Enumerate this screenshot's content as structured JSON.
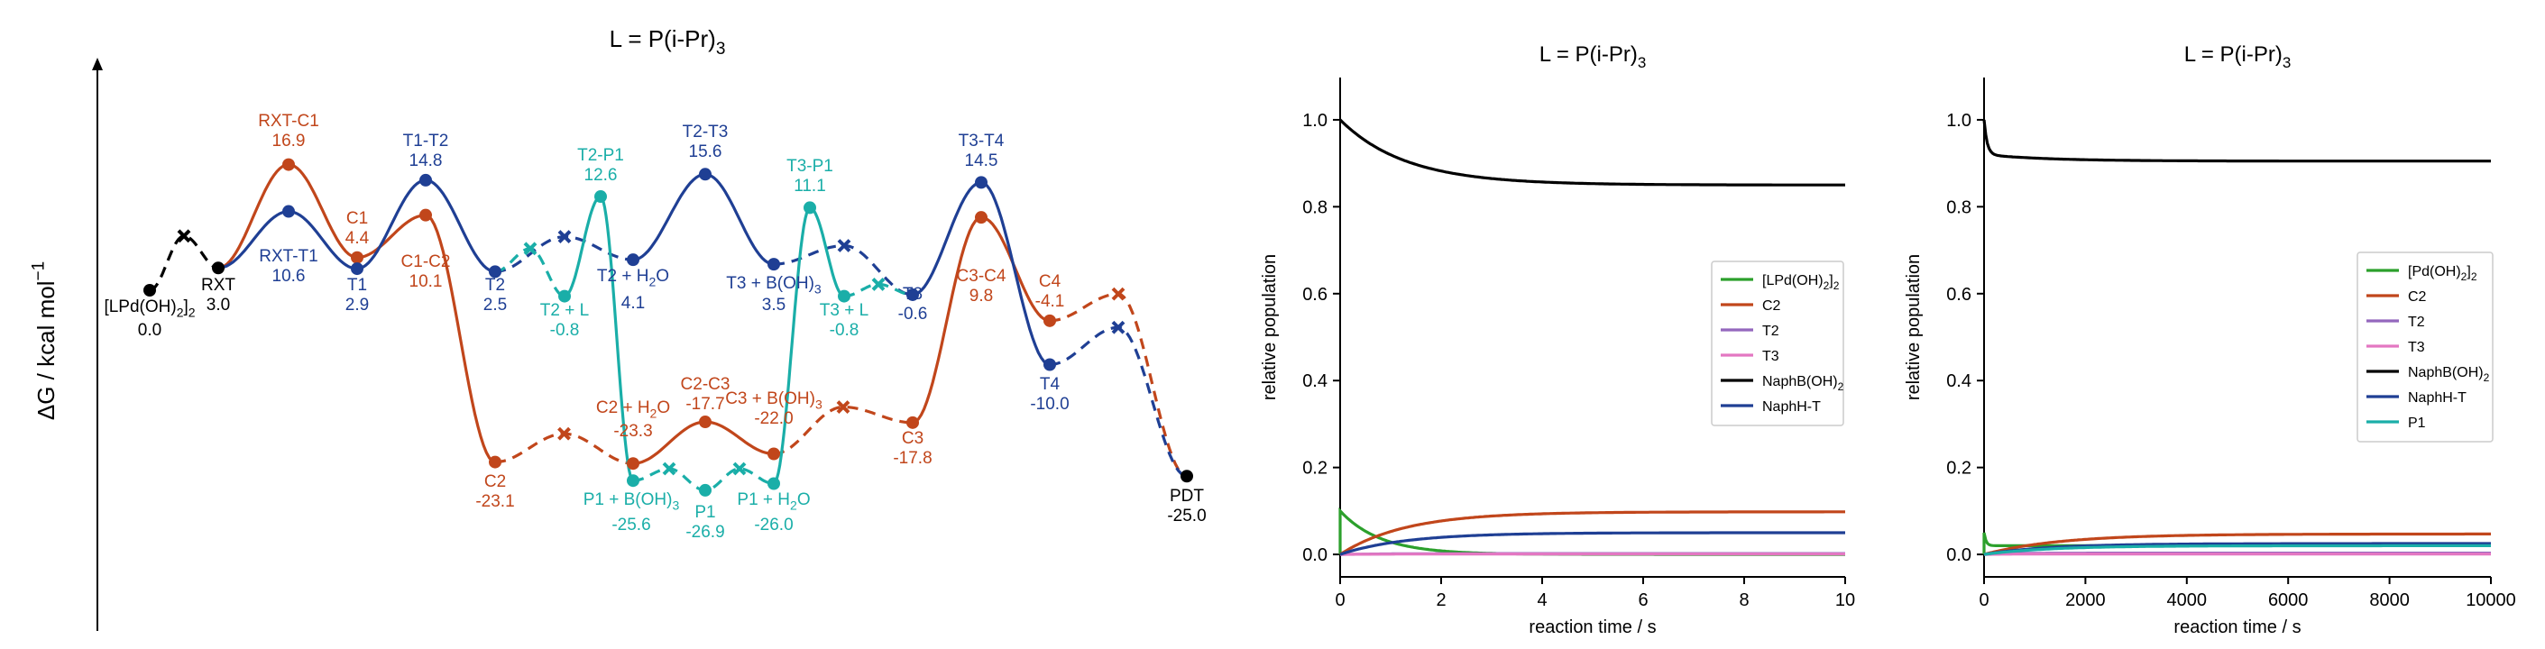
{
  "colors": {
    "black": "#000000",
    "blue": "#1f3f94",
    "orange": "#c1461b",
    "teal": "#1aaea8",
    "green": "#2ca02c",
    "purple": "#9467bd",
    "pink": "#e377c2"
  },
  "chart_data": [
    {
      "type": "line",
      "title": "L = P(i-Pr)3",
      "title_parts": {
        "main": "L = P(i-Pr)",
        "sub": "3"
      },
      "ylabel": "ΔG / kcal mol⁻¹",
      "ylabel_parts": {
        "main": "ΔG / kcal mol",
        "sup": "−1"
      },
      "series": [
        {
          "color": "black",
          "values": [
            0.0,
            3.0,
            -25.0
          ]
        },
        {
          "color": "blue",
          "values": [
            3.0,
            10.6,
            2.9,
            14.8,
            2.5,
            4.1,
            15.6,
            3.5,
            -0.6,
            14.5,
            -10.0
          ]
        },
        {
          "color": "orange",
          "values": [
            3.0,
            16.9,
            4.4,
            10.1,
            -23.1,
            -23.3,
            -17.7,
            -22.0,
            -17.8,
            9.8,
            -4.1
          ]
        },
        {
          "color": "teal",
          "values": [
            2.5,
            -0.8,
            12.6,
            -25.6,
            -26.9,
            -26.0,
            11.1,
            -0.8,
            -0.6
          ]
        }
      ],
      "states": [
        {
          "id": "lpd",
          "name": "[LPd(OH)2]2",
          "parts": {
            "main": "[LPd(OH)",
            "sub": "2",
            "tail": "]",
            "sub2": "2"
          },
          "value": "0.0",
          "color": "black"
        },
        {
          "id": "rxt",
          "name": "RXT",
          "value": "3.0",
          "color": "black"
        },
        {
          "id": "rxt_c1",
          "name": "RXT-C1",
          "value": "16.9",
          "color": "orange"
        },
        {
          "id": "rxt_t1",
          "name": "RXT-T1",
          "value": "10.6",
          "color": "blue"
        },
        {
          "id": "c1",
          "name": "C1",
          "value": "4.4",
          "color": "orange"
        },
        {
          "id": "t1",
          "name": "T1",
          "value": "2.9",
          "color": "blue"
        },
        {
          "id": "t1_t2",
          "name": "T1-T2",
          "value": "14.8",
          "color": "blue"
        },
        {
          "id": "c1_c2",
          "name": "C1-C2",
          "value": "10.1",
          "color": "orange"
        },
        {
          "id": "t2",
          "name": "T2",
          "value": "2.5",
          "color": "blue"
        },
        {
          "id": "c2",
          "name": "C2",
          "value": "-23.1",
          "color": "orange"
        },
        {
          "id": "t2_p1",
          "name": "T2-P1",
          "value": "12.6",
          "color": "teal"
        },
        {
          "id": "t2_l",
          "name": "T2 + L",
          "value": "-0.8",
          "color": "teal"
        },
        {
          "id": "t2_h2o",
          "name": "T2 + H2O",
          "parts": {
            "main": "T2 + H",
            "sub": "2",
            "tail": "O"
          },
          "value": "4.1",
          "color": "blue"
        },
        {
          "id": "c2_h2o",
          "name": "C2 + H2O",
          "parts": {
            "main": "C2 + H",
            "sub": "2",
            "tail": "O"
          },
          "value": "-23.3",
          "color": "orange"
        },
        {
          "id": "p1_boh",
          "name": "P1 + B(OH)3",
          "parts": {
            "main": "P1 + B(OH)",
            "sub": "3"
          },
          "value": "-25.6",
          "color": "teal"
        },
        {
          "id": "t2_t3",
          "name": "T2-T3",
          "value": "15.6",
          "color": "blue"
        },
        {
          "id": "c2_c3",
          "name": "C2-C3",
          "value": "-17.7",
          "color": "orange"
        },
        {
          "id": "p1",
          "name": "P1",
          "value": "-26.9",
          "color": "teal"
        },
        {
          "id": "c3_boh",
          "name": "C3 + B(OH)3",
          "parts": {
            "main": "C3 + B(OH)",
            "sub": "3"
          },
          "value": "-22.0",
          "color": "orange"
        },
        {
          "id": "p1_h2o",
          "name": "P1 + H2O",
          "parts": {
            "main": "P1 + H",
            "sub": "2",
            "tail": "O"
          },
          "value": "-26.0",
          "color": "teal"
        },
        {
          "id": "t3_boh",
          "name": "T3 + B(OH)3",
          "parts": {
            "main": "T3 + B(OH)",
            "sub": "3"
          },
          "value": "3.5",
          "color": "blue"
        },
        {
          "id": "t3_p1",
          "name": "T3-P1",
          "value": "11.1",
          "color": "teal"
        },
        {
          "id": "t3_l",
          "name": "T3 + L",
          "value": "-0.8",
          "color": "teal"
        },
        {
          "id": "t3",
          "name": "T3",
          "value": "-0.6",
          "color": "blue"
        },
        {
          "id": "c3",
          "name": "C3",
          "value": "-17.8",
          "color": "orange"
        },
        {
          "id": "t3_t4",
          "name": "T3-T4",
          "value": "14.5",
          "color": "blue"
        },
        {
          "id": "c3_c4",
          "name": "C3-C4",
          "value": "9.8",
          "color": "orange"
        },
        {
          "id": "c4",
          "name": "C4",
          "value": "-4.1",
          "color": "orange"
        },
        {
          "id": "t4",
          "name": "T4",
          "value": "-10.0",
          "color": "blue"
        },
        {
          "id": "pdt",
          "name": "PDT",
          "value": "-25.0",
          "color": "black"
        }
      ]
    },
    {
      "type": "line",
      "title": "L = P(i-Pr)3",
      "title_parts": {
        "main": "L = P(i-Pr)",
        "sub": "3"
      },
      "xlabel": "reaction time / s",
      "ylabel": "relative population",
      "xlim": [
        0,
        10
      ],
      "ylim": [
        0,
        1.0
      ],
      "xticks": [
        0,
        2,
        4,
        6,
        8,
        10
      ],
      "yticks": [
        "0.0",
        "0.2",
        "0.4",
        "0.6",
        "0.8",
        "1.0"
      ],
      "legend_position": "right",
      "series": [
        {
          "name": "[LPd(OH)2]2",
          "name_parts": {
            "main": "[LPd(OH)",
            "sub": "2",
            "tail": "]",
            "sub2": "2"
          },
          "color": "green",
          "initial": 0.1,
          "final": 0.0,
          "tau": 0.8,
          "kind": "decay_spike"
        },
        {
          "name": "C2",
          "color": "orange",
          "initial": 0.0,
          "final": 0.098,
          "tau": 1.3,
          "kind": "rise"
        },
        {
          "name": "T2",
          "color": "purple",
          "initial": 0.0,
          "final": 0.002,
          "tau": 1.0,
          "kind": "rise"
        },
        {
          "name": "T3",
          "color": "pink",
          "initial": 0.0,
          "final": 0.001,
          "tau": 1.0,
          "kind": "rise"
        },
        {
          "name": "NaphB(OH)2",
          "name_parts": {
            "main": "NaphB(OH)",
            "sub": "2"
          },
          "color": "black",
          "initial": 1.0,
          "final": 0.85,
          "tau": 1.3,
          "kind": "decay"
        },
        {
          "name": "NaphH-T",
          "color": "blue",
          "initial": 0.0,
          "final": 0.05,
          "tau": 1.3,
          "kind": "rise"
        }
      ]
    },
    {
      "type": "line",
      "title": "L = P(i-Pr)3",
      "title_parts": {
        "main": "L = P(i-Pr)",
        "sub": "3"
      },
      "xlabel": "reaction time / s",
      "ylabel": "relative population",
      "xlim": [
        0,
        10000
      ],
      "ylim": [
        0,
        1.0
      ],
      "xticks": [
        0,
        2000,
        4000,
        6000,
        8000,
        10000
      ],
      "yticks": [
        "0.0",
        "0.2",
        "0.4",
        "0.6",
        "0.8",
        "1.0"
      ],
      "legend_position": "right",
      "series": [
        {
          "name": "[Pd(OH)2]2",
          "name_parts": {
            "main": "[Pd(OH)",
            "sub": "2",
            "tail": "]",
            "sub2": "2"
          },
          "color": "green",
          "initial": 0.05,
          "final": 0.02,
          "tau": 40,
          "kind": "decay_spike"
        },
        {
          "name": "C2",
          "color": "orange",
          "initial": 0.0,
          "final": 0.047,
          "tau": 1500,
          "kind": "rise"
        },
        {
          "name": "T2",
          "color": "purple",
          "initial": 0.0,
          "final": 0.003,
          "tau": 500,
          "kind": "rise"
        },
        {
          "name": "T3",
          "color": "pink",
          "initial": 0.0,
          "final": 0.001,
          "tau": 500,
          "kind": "rise"
        },
        {
          "name": "NaphB(OH)2",
          "name_parts": {
            "main": "NaphB(OH)",
            "sub": "2"
          },
          "color": "black",
          "initial": 1.0,
          "final": 0.905,
          "tau": 1300,
          "kind": "decay_fast"
        },
        {
          "name": "NaphH-T",
          "color": "blue",
          "initial": 0.0,
          "final": 0.025,
          "tau": 1300,
          "kind": "rise"
        },
        {
          "name": "P1",
          "color": "teal",
          "initial": 0.0,
          "final": 0.02,
          "tau": 1300,
          "kind": "rise"
        }
      ]
    }
  ]
}
